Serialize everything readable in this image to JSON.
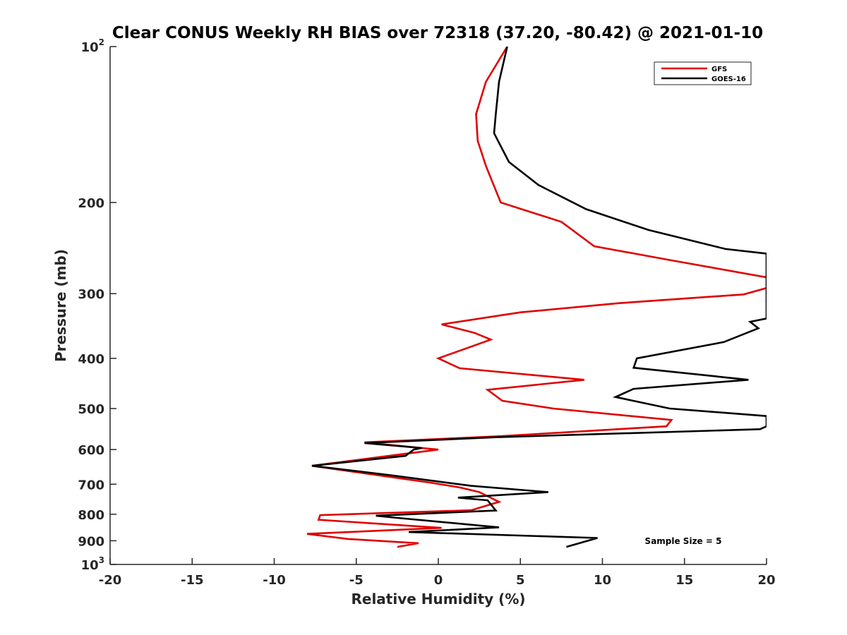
{
  "chart_data": {
    "type": "line",
    "title": "Clear CONUS Weekly RH BIAS over 72318 (37.20, -80.42) @ 2021-01-10",
    "xlabel": "Relative Humidity (%)",
    "ylabel": "Pressure (mb)",
    "xlim": [
      -20,
      20
    ],
    "ylim": [
      100,
      1000
    ],
    "y_scale": "log",
    "y_reversed": true,
    "grid": false,
    "legend_position": "top-right",
    "x_ticks": [
      -20,
      -15,
      -10,
      -5,
      0,
      5,
      10,
      15,
      20
    ],
    "x_tick_labels": [
      "-20",
      "-15",
      "-10",
      "-5",
      "0",
      "5",
      "10",
      "15",
      "20"
    ],
    "y_ticks": [
      {
        "value": 100,
        "base": "10",
        "exp": "2"
      },
      {
        "value": 200,
        "label": "200"
      },
      {
        "value": 300,
        "label": "300"
      },
      {
        "value": 400,
        "label": "400"
      },
      {
        "value": 500,
        "label": "500"
      },
      {
        "value": 600,
        "label": "600"
      },
      {
        "value": 700,
        "label": "700"
      },
      {
        "value": 800,
        "label": "800"
      },
      {
        "value": 900,
        "label": "900"
      },
      {
        "value": 1000,
        "base": "10",
        "exp": "3"
      }
    ],
    "annotation": "Sample Size = 5",
    "series": [
      {
        "name": "GFS",
        "color": "#e00000",
        "points": [
          [
            4.2,
            100
          ],
          [
            2.9,
            117
          ],
          [
            2.3,
            135
          ],
          [
            2.4,
            152
          ],
          [
            2.9,
            170
          ],
          [
            3.8,
            200
          ],
          [
            7.5,
            218
          ],
          [
            9.5,
            243
          ],
          [
            14.0,
            258
          ],
          [
            20.0,
            279
          ],
          [
            20.6,
            289
          ],
          [
            18.6,
            301
          ],
          [
            11.0,
            313
          ],
          [
            5.0,
            326
          ],
          [
            0.2,
            344
          ],
          [
            2.2,
            357
          ],
          [
            3.2,
            368
          ],
          [
            0.0,
            400
          ],
          [
            1.3,
            418
          ],
          [
            8.9,
            440
          ],
          [
            3.0,
            460
          ],
          [
            3.9,
            483
          ],
          [
            7.0,
            500
          ],
          [
            14.2,
            526
          ],
          [
            13.9,
            541
          ],
          [
            3.5,
            566
          ],
          [
            -4.5,
            581
          ],
          [
            -1.0,
            596
          ],
          [
            0.0,
            600
          ],
          [
            -3.0,
            617
          ],
          [
            -7.7,
            645
          ],
          [
            -4.5,
            667
          ],
          [
            -0.5,
            695
          ],
          [
            1.3,
            710
          ],
          [
            2.5,
            725
          ],
          [
            3.7,
            757
          ],
          [
            2.0,
            786
          ],
          [
            -7.2,
            803
          ],
          [
            -7.3,
            820
          ],
          [
            0.2,
            850
          ],
          [
            -8.0,
            873
          ],
          [
            -5.5,
            893
          ],
          [
            -1.2,
            910
          ],
          [
            -2.5,
            925
          ]
        ]
      },
      {
        "name": "GOES-16",
        "color": "#000000",
        "points": [
          [
            4.2,
            100
          ],
          [
            3.7,
            117
          ],
          [
            3.5,
            135
          ],
          [
            3.4,
            147
          ],
          [
            4.3,
            167
          ],
          [
            6.1,
            185
          ],
          [
            9.0,
            206
          ],
          [
            12.8,
            226
          ],
          [
            17.5,
            246
          ],
          [
            20.0,
            251
          ],
          [
            20.0,
            335
          ],
          [
            19.0,
            340
          ],
          [
            19.5,
            350
          ],
          [
            17.4,
            372
          ],
          [
            12.1,
            400
          ],
          [
            11.9,
            417
          ],
          [
            18.9,
            440
          ],
          [
            11.9,
            458
          ],
          [
            10.8,
            475
          ],
          [
            14.1,
            500
          ],
          [
            20.0,
            517
          ],
          [
            20.0,
            541
          ],
          [
            19.6,
            548
          ],
          [
            3.5,
            568
          ],
          [
            -4.5,
            583
          ],
          [
            -1.0,
            596
          ],
          [
            -1.5,
            600
          ],
          [
            -2.0,
            617
          ],
          [
            -7.7,
            645
          ],
          [
            -3.0,
            672
          ],
          [
            2.0,
            705
          ],
          [
            6.7,
            725
          ],
          [
            1.2,
            743
          ],
          [
            3.0,
            752
          ],
          [
            3.5,
            787
          ],
          [
            -3.8,
            805
          ],
          [
            -2.5,
            813
          ],
          [
            3.7,
            848
          ],
          [
            -1.8,
            866
          ],
          [
            9.7,
            889
          ],
          [
            7.8,
            925
          ]
        ]
      }
    ]
  }
}
